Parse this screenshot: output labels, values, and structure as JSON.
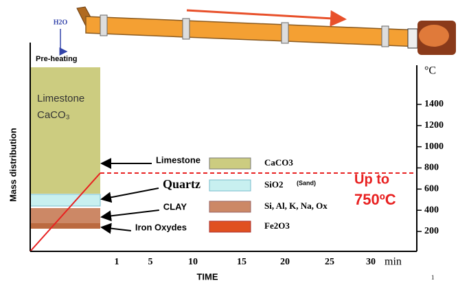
{
  "header": {
    "water": "H2O",
    "stage": "Pre-heating"
  },
  "panel": {
    "mineral": "Limestone",
    "formula": "CaCO₃"
  },
  "axes": {
    "y_label": "Mass distribution",
    "x_label": "TIME",
    "temp_unit": "°C",
    "temp_ticks": [
      200,
      400,
      600,
      800,
      1000,
      1200,
      1400
    ],
    "time_ticks": [
      1,
      5,
      10,
      15,
      20,
      25,
      30
    ],
    "time_unit": "min"
  },
  "components": [
    {
      "name": "Limestone",
      "formula": "CaCO3"
    },
    {
      "name": "Quartz",
      "formula": "SiO2",
      "note": "(Sand)"
    },
    {
      "name": "CLAY",
      "formula": "Si, Al, K, Na, Ox"
    },
    {
      "name": "Iron Oxydes",
      "formula": "Fe2O3"
    }
  ],
  "temperature_note": [
    "Up to",
    "750ºC"
  ],
  "page_number": "1"
}
